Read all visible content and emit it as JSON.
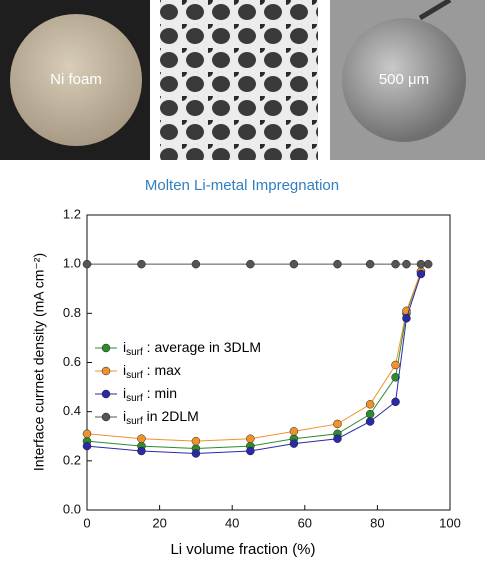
{
  "photos": [
    "Ni foam",
    "500 μm"
  ],
  "heading": "Molten Li-metal Impregnation",
  "chart_data": {
    "type": "line",
    "xlabel": "Li volume fraction (%)",
    "ylabel": "Interface currnet density (mA cm⁻²)",
    "xlim": [
      0,
      100
    ],
    "xticks": [
      0,
      20,
      40,
      60,
      80,
      100
    ],
    "ylim": [
      0,
      1.2
    ],
    "yticks": [
      {
        "value": 0,
        "label": "0.0"
      },
      0.2,
      0.4,
      0.6,
      0.8,
      {
        "value": 1,
        "label": "1.0"
      },
      1.2
    ],
    "legend": "left",
    "series": [
      {
        "name": "isurf : average in 3DLM",
        "color": "#2e8b2e",
        "x": [
          0,
          15,
          30,
          45,
          57,
          69,
          78,
          85,
          88,
          92
        ],
        "values": [
          0.28,
          0.26,
          0.25,
          0.26,
          0.29,
          0.31,
          0.39,
          0.54,
          0.8,
          0.97
        ]
      },
      {
        "name": "isurf : max",
        "color": "#f0922b",
        "x": [
          0,
          15,
          30,
          45,
          57,
          69,
          78,
          85,
          88,
          92
        ],
        "values": [
          0.31,
          0.29,
          0.28,
          0.29,
          0.32,
          0.35,
          0.43,
          0.59,
          0.81,
          0.97
        ]
      },
      {
        "name": "isurf : min",
        "color": "#2a2aa8",
        "x": [
          0,
          15,
          30,
          45,
          57,
          69,
          78,
          85,
          88,
          92
        ],
        "values": [
          0.26,
          0.24,
          0.23,
          0.24,
          0.27,
          0.29,
          0.36,
          0.44,
          0.78,
          0.96
        ]
      },
      {
        "name": "isurf in 2DLM",
        "color": "#555555",
        "x": [
          0,
          15,
          30,
          45,
          57,
          69,
          78,
          85,
          88,
          92,
          94
        ],
        "values": [
          1,
          1,
          1,
          1,
          1,
          1,
          1,
          1,
          1,
          1,
          1
        ]
      }
    ]
  }
}
